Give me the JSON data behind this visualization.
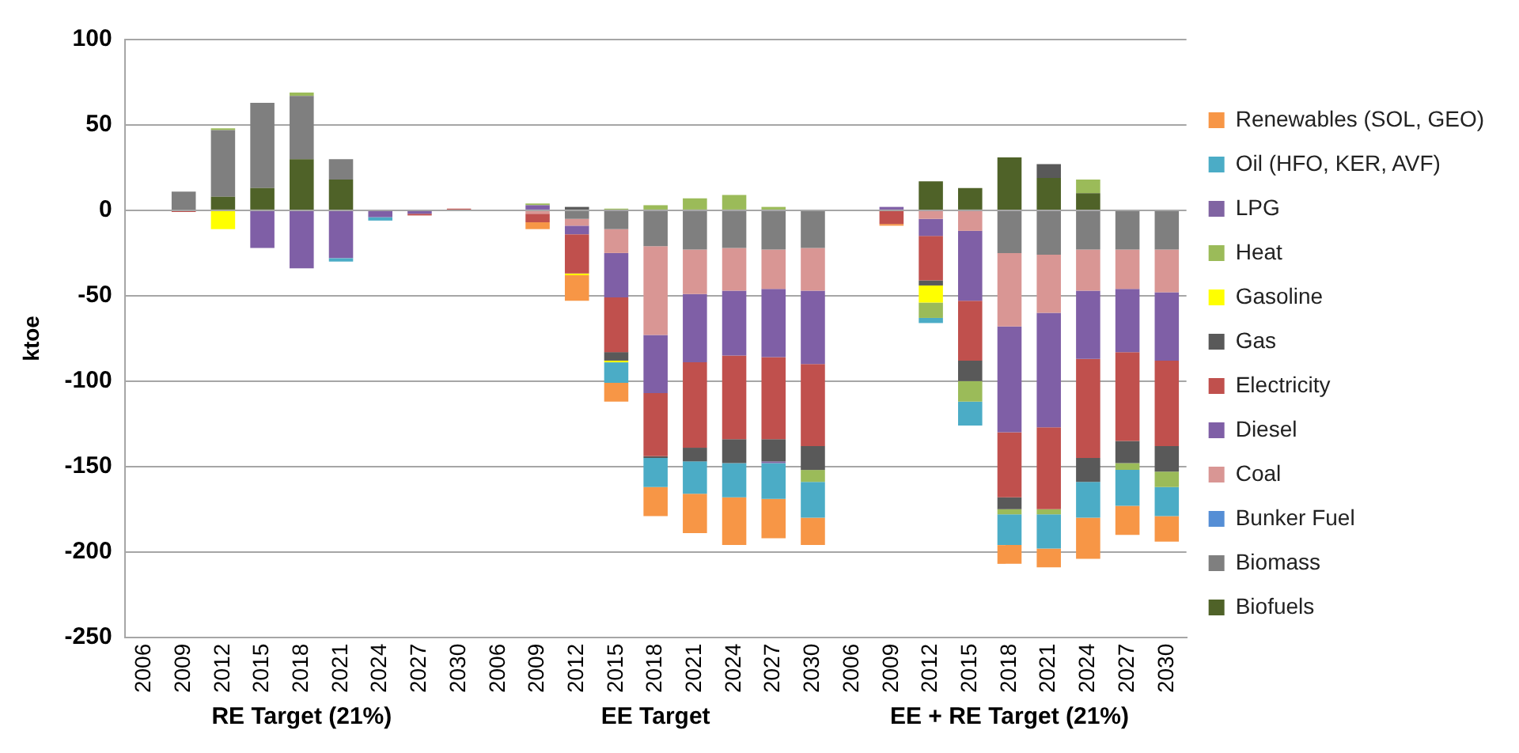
{
  "chart_data": {
    "type": "bar",
    "stacked": true,
    "ylabel": "ktoe",
    "ylim": [
      -250,
      100
    ],
    "yticks": [
      -250,
      -200,
      -150,
      -100,
      -50,
      0,
      50,
      100
    ],
    "grid": "y",
    "legend": "right",
    "annotations": [
      "RE Target (21%)",
      "EE Target",
      "EE + RE Target (21%)"
    ],
    "categories": [
      "2006",
      "2009",
      "2012",
      "2015",
      "2018",
      "2021",
      "2024",
      "2027",
      "2030",
      "2006",
      "2009",
      "2012",
      "2015",
      "2018",
      "2021",
      "2024",
      "2027",
      "2030",
      "2006",
      "2009",
      "2012",
      "2015",
      "2018",
      "2021",
      "2024",
      "2027",
      "2030"
    ],
    "series": [
      {
        "name": "Biofuels",
        "color": "#4f6228",
        "values": [
          0,
          0,
          8,
          13,
          30,
          18,
          0,
          0,
          0,
          0,
          0,
          0,
          0,
          0,
          0,
          0,
          0,
          0,
          0,
          0,
          17,
          13,
          31,
          19,
          10,
          0,
          0
        ]
      },
      {
        "name": "Biomass",
        "color": "#7f7f7f",
        "values": [
          0,
          11,
          39,
          50,
          37,
          12,
          0,
          0,
          0,
          0,
          0,
          -5,
          -11,
          -21,
          -23,
          -22,
          -23,
          -22,
          0,
          0,
          0,
          0,
          -25,
          -26,
          -23,
          -23,
          -23
        ]
      },
      {
        "name": "Bunker Fuel",
        "color": "#558ed5",
        "values": [
          0,
          0,
          0,
          0,
          0,
          0,
          0,
          0,
          0,
          0,
          0,
          0,
          0,
          0,
          0,
          0,
          0,
          0,
          0,
          0,
          0,
          0,
          0,
          0,
          0,
          0,
          0
        ]
      },
      {
        "name": "Coal",
        "color": "#d99694",
        "values": [
          0,
          0,
          0,
          0,
          0,
          0,
          0,
          0,
          0,
          0,
          -2,
          -4,
          -14,
          -52,
          -26,
          -25,
          -23,
          -25,
          0,
          0,
          -5,
          -12,
          -43,
          -34,
          -24,
          -23,
          -25
        ]
      },
      {
        "name": "Diesel",
        "color": "#7f5fa6",
        "values": [
          0,
          0,
          0,
          -22,
          -34,
          -28,
          -4,
          -2,
          0,
          0,
          3,
          -5,
          -26,
          -34,
          -40,
          -38,
          -40,
          -43,
          0,
          2,
          -10,
          -41,
          -62,
          -67,
          -40,
          -37,
          -40
        ]
      },
      {
        "name": "Electricity",
        "color": "#c0504d",
        "values": [
          0,
          -1,
          0,
          0,
          0,
          0,
          0,
          -1,
          1,
          0,
          -5,
          -23,
          -32,
          -37,
          -50,
          -49,
          -48,
          -48,
          0,
          -8,
          -26,
          -35,
          -38,
          -48,
          -58,
          -52,
          -50
        ]
      },
      {
        "name": "Gas",
        "color": "#595959",
        "values": [
          0,
          0,
          0,
          0,
          0,
          0,
          0,
          0,
          0,
          0,
          0,
          2,
          -5,
          -1,
          -8,
          -14,
          -13,
          -14,
          0,
          0,
          -3,
          -12,
          -7,
          8,
          -14,
          -13,
          -15
        ]
      },
      {
        "name": "Gasoline",
        "color": "#ffff00",
        "values": [
          0,
          0,
          -11,
          0,
          0,
          0,
          0,
          0,
          0,
          0,
          0,
          -1,
          -1,
          0,
          0,
          0,
          0,
          0,
          0,
          0,
          -10,
          0,
          0,
          0,
          0,
          0,
          0
        ]
      },
      {
        "name": "Heat",
        "color": "#9bbb59",
        "values": [
          0,
          0,
          1,
          0,
          2,
          0,
          0,
          0,
          0,
          0,
          1,
          0,
          1,
          3,
          7,
          9,
          2,
          -7,
          0,
          0,
          -9,
          -12,
          -3,
          -3,
          8,
          -4,
          -9
        ]
      },
      {
        "name": "LPG",
        "color": "#8064a2",
        "values": [
          0,
          0,
          0,
          0,
          0,
          0,
          0,
          0,
          0,
          0,
          0,
          0,
          0,
          0,
          0,
          0,
          -1,
          0,
          0,
          0,
          0,
          0,
          0,
          0,
          0,
          0,
          0
        ]
      },
      {
        "name": "Oil (HFO, KER, AVF)",
        "color": "#4bacc6",
        "values": [
          0,
          0,
          0,
          0,
          0,
          -2,
          -2,
          0,
          0,
          0,
          0,
          0,
          -12,
          -17,
          -19,
          -20,
          -21,
          -21,
          0,
          0,
          -3,
          -14,
          -18,
          -20,
          -21,
          -21,
          -17
        ]
      },
      {
        "name": "Renewables (SOL, GEO)",
        "color": "#f79646",
        "values": [
          0,
          0,
          0,
          0,
          0,
          0,
          0,
          0,
          0,
          0,
          -4,
          -15,
          -11,
          -17,
          -23,
          -28,
          -23,
          -16,
          0,
          -1,
          0,
          0,
          -11,
          -11,
          -24,
          -17,
          -15
        ]
      }
    ]
  }
}
